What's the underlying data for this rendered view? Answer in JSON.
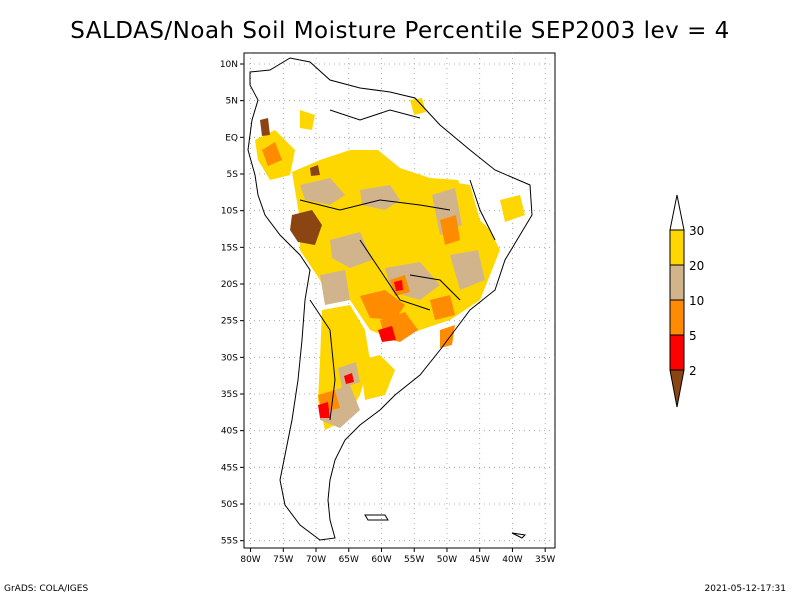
{
  "title": "SALDAS/Noah Soil Moisture Percentile SEP2003 lev = 4",
  "footer_left": "GrADS: COLA/IGES",
  "footer_right": "2021-05-12-17:31",
  "map": {
    "lat_ticks": [
      "10N",
      "5N",
      "EQ",
      "5S",
      "10S",
      "15S",
      "20S",
      "25S",
      "30S",
      "35S",
      "40S",
      "45S",
      "50S",
      "55S"
    ],
    "lon_ticks": [
      "80W",
      "75W",
      "70W",
      "65W",
      "60W",
      "55W",
      "50W",
      "45W",
      "40W",
      "35W"
    ],
    "lat_values": [
      10,
      5,
      0,
      -5,
      -10,
      -15,
      -20,
      -25,
      -30,
      -35,
      -40,
      -45,
      -50,
      -55
    ],
    "lon_values": [
      -80,
      -75,
      -70,
      -65,
      -60,
      -55,
      -50,
      -45,
      -40,
      -35
    ],
    "lat_range": [
      -56,
      11.5
    ],
    "lon_range": [
      -81,
      -33.5
    ]
  },
  "legend": {
    "labels": [
      "30",
      "20",
      "10",
      "5",
      "2"
    ],
    "colors": {
      "above_30": "#ffffff",
      "20_30": "#ffd700",
      "10_20": "#d2b48c",
      "5_10": "#ff8c00",
      "2_5": "#ff0000",
      "below_2": "#8b4513"
    }
  }
}
